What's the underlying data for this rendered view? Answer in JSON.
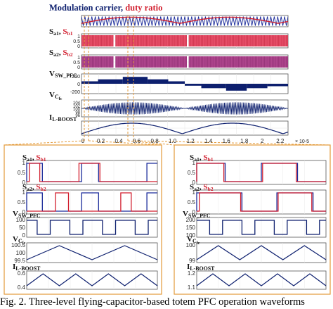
{
  "figure": {
    "top_panel": {
      "title_part1": "Modulation carrier, ",
      "title_part2": "duty ratio",
      "colors": {
        "blue": "#1a2a9a",
        "red": "#d21f2f",
        "purple": "#9c2a78",
        "navy": "#0d1f6e"
      },
      "subplots": [
        {
          "label": "S a1, S b1",
          "label_main_1": "S",
          "label_sub_1": "a1",
          "label_sep": ", ",
          "label_main_2": "S",
          "label_sub_2": "b1",
          "ticks": [
            "1",
            "0.5",
            "0"
          ]
        },
        {
          "label": "S a2, S b2",
          "label_main_1": "S",
          "label_sub_1": "a2",
          "label_sep": ", ",
          "label_main_2": "S",
          "label_sub_2": "b2",
          "ticks": [
            "1",
            "0.5",
            "0"
          ]
        },
        {
          "label": "V SW_PFC",
          "label_main": "V",
          "label_sub": "SW_PFC",
          "ticks": [
            "200",
            "0",
            "-200"
          ]
        },
        {
          "label": "V Cfc",
          "label_main": "V",
          "label_sub": "C",
          "label_subsub": "fc",
          "ticks": [
            "104",
            "102",
            "100",
            "98",
            "96"
          ]
        },
        {
          "label": "I L-BOOST",
          "label_main": "I",
          "label_sub": "L-BOOST",
          "ticks": []
        }
      ],
      "x_ticks": [
        "0",
        "0.2",
        "0.4",
        "0.6",
        "0.8",
        "1.0",
        "1.2",
        "1.4",
        "1.6",
        "1.8",
        "2",
        "2.2"
      ],
      "x_multiplier": "× 10-5"
    },
    "zoom_left": {
      "subplots": [
        {
          "label_main_1": "S",
          "label_sub_1": "a1",
          "label_sep": ", ",
          "label_main_2": "S",
          "label_sub_2": "b1",
          "ticks": [
            "1",
            "0.5",
            "0"
          ]
        },
        {
          "label_main_1": "S",
          "label_sub_1": "a2",
          "label_sep": ", ",
          "label_main_2": "S",
          "label_sub_2": "b2",
          "ticks": [
            "1",
            "0.5",
            "0"
          ]
        },
        {
          "label_main": "V",
          "label_sub": "SW_PFC",
          "ticks": [
            "100",
            "50",
            "0"
          ]
        },
        {
          "label_main": "V",
          "label_sub": "C",
          "label_subsub": "fc",
          "ticks": [
            "100.5",
            "100",
            "99.5"
          ]
        },
        {
          "label_main": "I",
          "label_sub": "L-BOOST",
          "ticks": [
            "0.6",
            "0.4"
          ]
        }
      ]
    },
    "zoom_right": {
      "subplots": [
        {
          "label_main_1": "S",
          "label_sub_1": "a1",
          "label_sep": ", ",
          "label_main_2": "S",
          "label_sub_2": "b1",
          "ticks": [
            "1",
            "0.5",
            "0"
          ]
        },
        {
          "label_main_1": "S",
          "label_sub_1": "a2",
          "label_sep": ", ",
          "label_main_2": "S",
          "label_sub_2": "b2",
          "ticks": [
            "1",
            "0.5",
            "0"
          ]
        },
        {
          "label_main": "V",
          "label_sub": "SW_PFC",
          "ticks": [
            "200",
            "150",
            "100"
          ]
        },
        {
          "label_main": "V",
          "label_sub": "C",
          "label_subsub": "fc",
          "ticks": [
            "100",
            "99"
          ]
        },
        {
          "label_main": "I",
          "label_sub": "L-BOOST",
          "ticks": [
            "1.2",
            "1.1"
          ]
        }
      ]
    },
    "caption": "Fig. 2. Three-level flying-capacitor-based totem PFC operation waveforms"
  }
}
